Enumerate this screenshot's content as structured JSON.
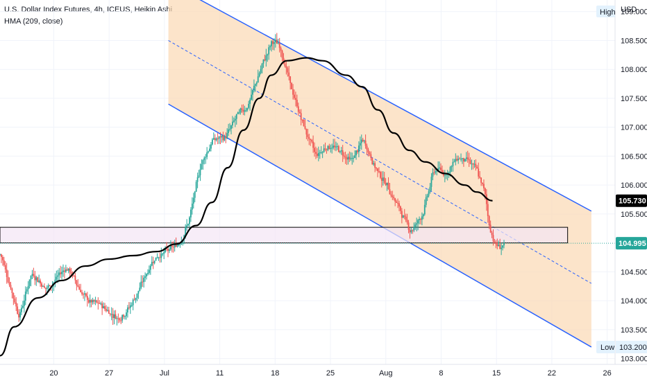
{
  "header": {
    "title": "U.S. Dollar Index Futures, 4h, ICEUS, Heikin Ashi",
    "indicator": "HMA (209, close)"
  },
  "price_axis": {
    "currency": "USD",
    "high_label": "High",
    "low_label": "Low"
  },
  "colors": {
    "up": "#26a69a",
    "down": "#ef5350",
    "hma": "#000000",
    "channel_line": "#2962ff",
    "channel_fill": "#fbd9b3",
    "zone_fill": "#f3e5f5",
    "zone_border": "#000000",
    "last_price_line": "#26a69a"
  },
  "chart_data": {
    "type": "candlestick",
    "title": "U.S. Dollar Index Futures, 4h, ICEUS, Heikin Ashi",
    "y_ticks": [
      "109.000",
      "108.500",
      "108.000",
      "107.500",
      "107.000",
      "106.500",
      "106.000",
      "105.500",
      "104.500",
      "104.000",
      "103.500",
      "103.000"
    ],
    "y_tick_values": [
      109.0,
      108.5,
      108.0,
      107.5,
      107.0,
      106.5,
      106.0,
      105.5,
      104.5,
      104.0,
      103.5,
      103.0
    ],
    "x_ticks": [
      "20",
      "27",
      "Jul",
      "11",
      "18",
      "25",
      "Aug",
      "8",
      "15",
      "22",
      "26"
    ],
    "x_tick_days": [
      20,
      27,
      34,
      41,
      48,
      55,
      62,
      69,
      76,
      83,
      90
    ],
    "x_unit": "day (June 1 = day 1)",
    "ylim": [
      102.9,
      109.2
    ],
    "xlim": [
      13.2,
      91.0
    ],
    "last_price": "104.995",
    "hma_last": "105.730",
    "high_value": "",
    "low_value": "103.200",
    "series": [
      {
        "name": "HMA (209, close)",
        "points": [
          [
            13.2,
            103.05
          ],
          [
            15,
            103.55
          ],
          [
            18,
            104.05
          ],
          [
            21,
            104.35
          ],
          [
            24,
            104.6
          ],
          [
            27,
            104.72
          ],
          [
            30,
            104.78
          ],
          [
            33,
            104.85
          ],
          [
            35.5,
            104.98
          ],
          [
            38,
            105.3
          ],
          [
            40,
            105.7
          ],
          [
            42,
            106.3
          ],
          [
            44,
            106.95
          ],
          [
            46,
            107.5
          ],
          [
            47.5,
            107.9
          ],
          [
            49.5,
            108.15
          ],
          [
            52,
            108.2
          ],
          [
            54,
            108.15
          ],
          [
            57,
            107.9
          ],
          [
            59,
            107.7
          ],
          [
            61,
            107.3
          ],
          [
            63,
            106.9
          ],
          [
            65,
            106.6
          ],
          [
            67,
            106.4
          ],
          [
            69.5,
            106.2
          ],
          [
            72,
            106.0
          ],
          [
            73.5,
            105.88
          ],
          [
            75.5,
            105.73
          ]
        ]
      },
      {
        "name": "Channel top",
        "points": [
          [
            34.5,
            109.5
          ],
          [
            88,
            105.55
          ]
        ]
      },
      {
        "name": "Channel mid",
        "points": [
          [
            34.5,
            108.5
          ],
          [
            88,
            104.3
          ]
        ]
      },
      {
        "name": "Channel bottom",
        "points": [
          [
            34.5,
            107.4
          ],
          [
            88,
            103.2
          ]
        ]
      },
      {
        "name": "Zone top",
        "points": [
          [
            13.2,
            105.27
          ],
          [
            85,
            105.27
          ]
        ]
      },
      {
        "name": "Zone bottom",
        "points": [
          [
            13.2,
            105.0
          ],
          [
            85,
            105.0
          ]
        ]
      }
    ],
    "ohlc_anchors": [
      [
        13.2,
        104.8
      ],
      [
        15.5,
        103.7
      ],
      [
        17,
        104.5
      ],
      [
        19,
        104.2
      ],
      [
        21.5,
        104.6
      ],
      [
        24,
        104.0
      ],
      [
        26,
        103.9
      ],
      [
        28,
        103.7
      ],
      [
        29.5,
        103.9
      ],
      [
        31,
        104.3
      ],
      [
        32.5,
        104.75
      ],
      [
        34,
        104.85
      ],
      [
        35.5,
        104.95
      ],
      [
        37,
        105.4
      ],
      [
        38.5,
        106.4
      ],
      [
        40,
        106.8
      ],
      [
        41.5,
        106.8
      ],
      [
        43,
        107.2
      ],
      [
        44.5,
        107.4
      ],
      [
        46,
        108.0
      ],
      [
        47.5,
        108.5
      ],
      [
        48.5,
        108.4
      ],
      [
        50,
        107.6
      ],
      [
        51.5,
        107.0
      ],
      [
        53,
        106.5
      ],
      [
        54.5,
        106.7
      ],
      [
        56,
        106.6
      ],
      [
        57.5,
        106.4
      ],
      [
        59,
        106.8
      ],
      [
        60.5,
        106.3
      ],
      [
        62,
        106.0
      ],
      [
        63.5,
        105.6
      ],
      [
        65,
        105.2
      ],
      [
        66.5,
        105.5
      ],
      [
        68,
        106.3
      ],
      [
        69.5,
        106.2
      ],
      [
        71,
        106.5
      ],
      [
        72.5,
        106.4
      ],
      [
        73.5,
        106.2
      ],
      [
        74.5,
        105.8
      ],
      [
        75,
        105.2
      ],
      [
        76,
        104.9
      ],
      [
        77,
        105.0
      ]
    ]
  }
}
